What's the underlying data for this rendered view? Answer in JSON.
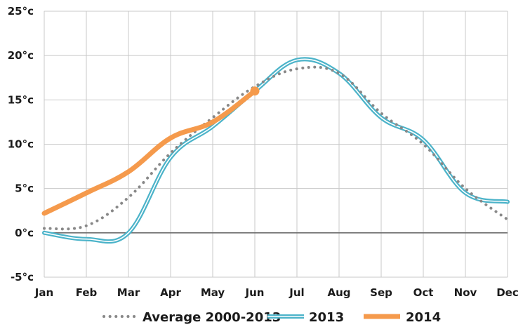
{
  "chart_data": {
    "type": "line",
    "title": "",
    "xlabel": "",
    "ylabel": "",
    "categories": [
      "Jan",
      "Feb",
      "Mar",
      "Apr",
      "May",
      "Jun",
      "Jul",
      "Aug",
      "Sep",
      "Oct",
      "Nov",
      "Dec"
    ],
    "y_tick_labels": [
      "25°c",
      "20°c",
      "15°c",
      "10°c",
      "5°c",
      "0°c",
      "-5°c"
    ],
    "y_ticks": [
      25,
      20,
      15,
      10,
      5,
      0,
      -5
    ],
    "ylim": [
      -5,
      25
    ],
    "grid": true,
    "legend_position": "bottom",
    "series": [
      {
        "name": "Average 2000-2013",
        "style": "dotted",
        "color": "#888888",
        "values": [
          0.5,
          0.8,
          4.0,
          9.0,
          13.0,
          16.5,
          18.5,
          18.0,
          13.5,
          10.0,
          5.0,
          1.5
        ]
      },
      {
        "name": "2013",
        "style": "double",
        "color": "#4bb3c9",
        "values": [
          0.0,
          -0.7,
          0.0,
          8.5,
          12.0,
          16.0,
          19.5,
          18.0,
          13.0,
          10.5,
          4.5,
          3.5
        ]
      },
      {
        "name": "2014",
        "style": "thick",
        "color": "#f59a4c",
        "values": [
          2.2,
          4.5,
          6.9,
          10.7,
          12.5,
          16.0,
          null,
          null,
          null,
          null,
          null,
          null
        ]
      }
    ]
  }
}
